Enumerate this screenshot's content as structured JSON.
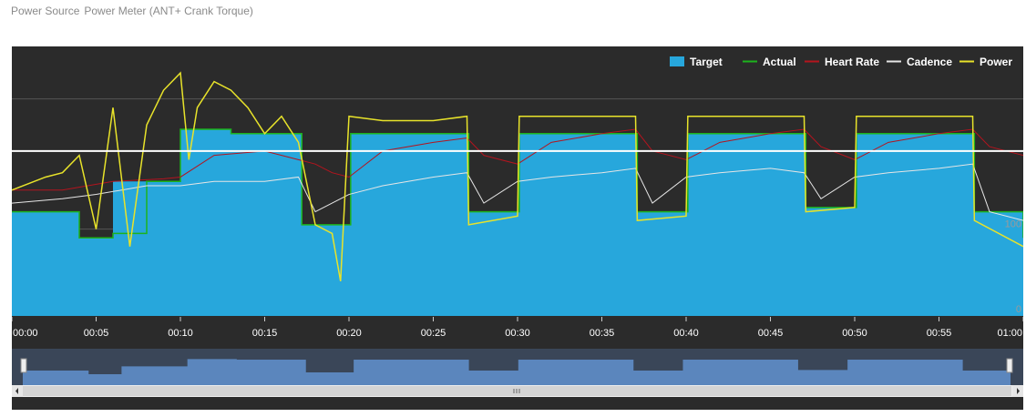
{
  "header": {
    "label": "Power Source",
    "value": "Power Meter (ANT+ Crank Torque)"
  },
  "colors": {
    "background": "#2b2b2b",
    "target": "#27a7dc",
    "actual": "#1db31d",
    "heart_rate": "#b4141e",
    "cadence": "#e6e6e6",
    "power": "#e8e32a",
    "threshold": "#ffffff",
    "navigator_fill": "#5b86bd",
    "navigator_bg": "#3a4658",
    "scrollbar": "#d4d4d4"
  },
  "chart_data": {
    "type": "line",
    "x_unit": "minutes",
    "xlim": [
      0,
      60
    ],
    "x_tick_labels": [
      "00:00",
      "00:05",
      "00:10",
      "00:15",
      "00:20",
      "00:25",
      "00:30",
      "00:35",
      "00:40",
      "00:45",
      "00:50",
      "00:55",
      "01:00"
    ],
    "ylim": [
      0,
      300
    ],
    "right_axis_labels": [
      "100",
      "0"
    ],
    "threshold_line": 190,
    "legend": [
      "Target",
      "Actual",
      "Heart Rate",
      "Cadence",
      "Power"
    ],
    "series": [
      {
        "name": "Target",
        "kind": "step-area",
        "values": [
          [
            0,
            120
          ],
          [
            4,
            90
          ],
          [
            6,
            155
          ],
          [
            8,
            155
          ],
          [
            10,
            215
          ],
          [
            12,
            215
          ],
          [
            13,
            210
          ],
          [
            17,
            210
          ],
          [
            17.2,
            105
          ],
          [
            20,
            105
          ],
          [
            20.1,
            210
          ],
          [
            27,
            210
          ],
          [
            27.1,
            120
          ],
          [
            30,
            120
          ],
          [
            30.1,
            210
          ],
          [
            37,
            210
          ],
          [
            37.1,
            120
          ],
          [
            40,
            120
          ],
          [
            40.1,
            210
          ],
          [
            47,
            210
          ],
          [
            47.1,
            125
          ],
          [
            50,
            125
          ],
          [
            50.1,
            210
          ],
          [
            57,
            210
          ],
          [
            57.1,
            120
          ],
          [
            60,
            90
          ]
        ]
      },
      {
        "name": "Actual",
        "kind": "line",
        "values": [
          [
            0,
            120
          ],
          [
            4,
            90
          ],
          [
            6,
            95
          ],
          [
            8,
            155
          ],
          [
            10,
            215
          ],
          [
            12,
            215
          ],
          [
            13,
            210
          ],
          [
            17,
            210
          ],
          [
            17.2,
            105
          ],
          [
            20,
            105
          ],
          [
            20.1,
            210
          ],
          [
            27,
            210
          ],
          [
            27.1,
            120
          ],
          [
            30,
            120
          ],
          [
            30.1,
            210
          ],
          [
            37,
            210
          ],
          [
            37.1,
            120
          ],
          [
            40,
            120
          ],
          [
            40.1,
            210
          ],
          [
            47,
            210
          ],
          [
            47.1,
            125
          ],
          [
            50,
            125
          ],
          [
            50.1,
            210
          ],
          [
            57,
            210
          ],
          [
            57.1,
            120
          ],
          [
            60,
            90
          ]
        ]
      },
      {
        "name": "Heart Rate",
        "kind": "line",
        "values": [
          [
            0,
            145
          ],
          [
            3,
            145
          ],
          [
            6,
            155
          ],
          [
            9,
            158
          ],
          [
            10,
            160
          ],
          [
            12,
            185
          ],
          [
            15,
            190
          ],
          [
            17,
            180
          ],
          [
            18,
            175
          ],
          [
            19,
            165
          ],
          [
            20,
            160
          ],
          [
            22,
            190
          ],
          [
            25,
            200
          ],
          [
            27,
            205
          ],
          [
            28,
            185
          ],
          [
            30,
            175
          ],
          [
            32,
            200
          ],
          [
            35,
            210
          ],
          [
            37,
            215
          ],
          [
            38,
            190
          ],
          [
            40,
            180
          ],
          [
            42,
            200
          ],
          [
            45,
            210
          ],
          [
            47,
            215
          ],
          [
            48,
            195
          ],
          [
            50,
            180
          ],
          [
            52,
            200
          ],
          [
            55,
            210
          ],
          [
            57,
            215
          ],
          [
            58,
            195
          ],
          [
            60,
            185
          ]
        ]
      },
      {
        "name": "Cadence",
        "kind": "line",
        "values": [
          [
            0,
            130
          ],
          [
            3,
            135
          ],
          [
            5,
            140
          ],
          [
            8,
            150
          ],
          [
            10,
            150
          ],
          [
            12,
            155
          ],
          [
            15,
            155
          ],
          [
            17,
            160
          ],
          [
            18,
            120
          ],
          [
            20,
            140
          ],
          [
            22,
            150
          ],
          [
            25,
            160
          ],
          [
            27,
            165
          ],
          [
            28,
            130
          ],
          [
            30,
            155
          ],
          [
            32,
            160
          ],
          [
            35,
            165
          ],
          [
            37,
            170
          ],
          [
            38,
            130
          ],
          [
            40,
            160
          ],
          [
            42,
            165
          ],
          [
            45,
            170
          ],
          [
            47,
            165
          ],
          [
            48,
            135
          ],
          [
            50,
            160
          ],
          [
            52,
            165
          ],
          [
            55,
            170
          ],
          [
            57,
            175
          ],
          [
            58,
            120
          ],
          [
            60,
            110
          ]
        ]
      },
      {
        "name": "Power",
        "kind": "line",
        "values": [
          [
            0,
            145
          ],
          [
            2,
            160
          ],
          [
            3,
            165
          ],
          [
            4,
            185
          ],
          [
            5,
            100
          ],
          [
            6,
            240
          ],
          [
            7,
            80
          ],
          [
            8,
            220
          ],
          [
            9,
            260
          ],
          [
            10,
            280
          ],
          [
            10.5,
            180
          ],
          [
            11,
            240
          ],
          [
            12,
            270
          ],
          [
            13,
            260
          ],
          [
            14,
            240
          ],
          [
            15,
            210
          ],
          [
            16,
            230
          ],
          [
            17,
            200
          ],
          [
            18,
            105
          ],
          [
            19,
            95
          ],
          [
            19.5,
            40
          ],
          [
            20,
            230
          ],
          [
            22,
            225
          ],
          [
            25,
            225
          ],
          [
            27,
            230
          ],
          [
            27.1,
            105
          ],
          [
            30,
            115
          ],
          [
            30.1,
            230
          ],
          [
            32,
            230
          ],
          [
            35,
            230
          ],
          [
            37,
            230
          ],
          [
            37.1,
            110
          ],
          [
            40,
            115
          ],
          [
            40.1,
            230
          ],
          [
            42,
            230
          ],
          [
            45,
            230
          ],
          [
            47,
            230
          ],
          [
            47.1,
            120
          ],
          [
            50,
            125
          ],
          [
            50.1,
            230
          ],
          [
            52,
            230
          ],
          [
            55,
            230
          ],
          [
            57,
            230
          ],
          [
            57.1,
            110
          ],
          [
            60,
            80
          ]
        ]
      }
    ]
  }
}
